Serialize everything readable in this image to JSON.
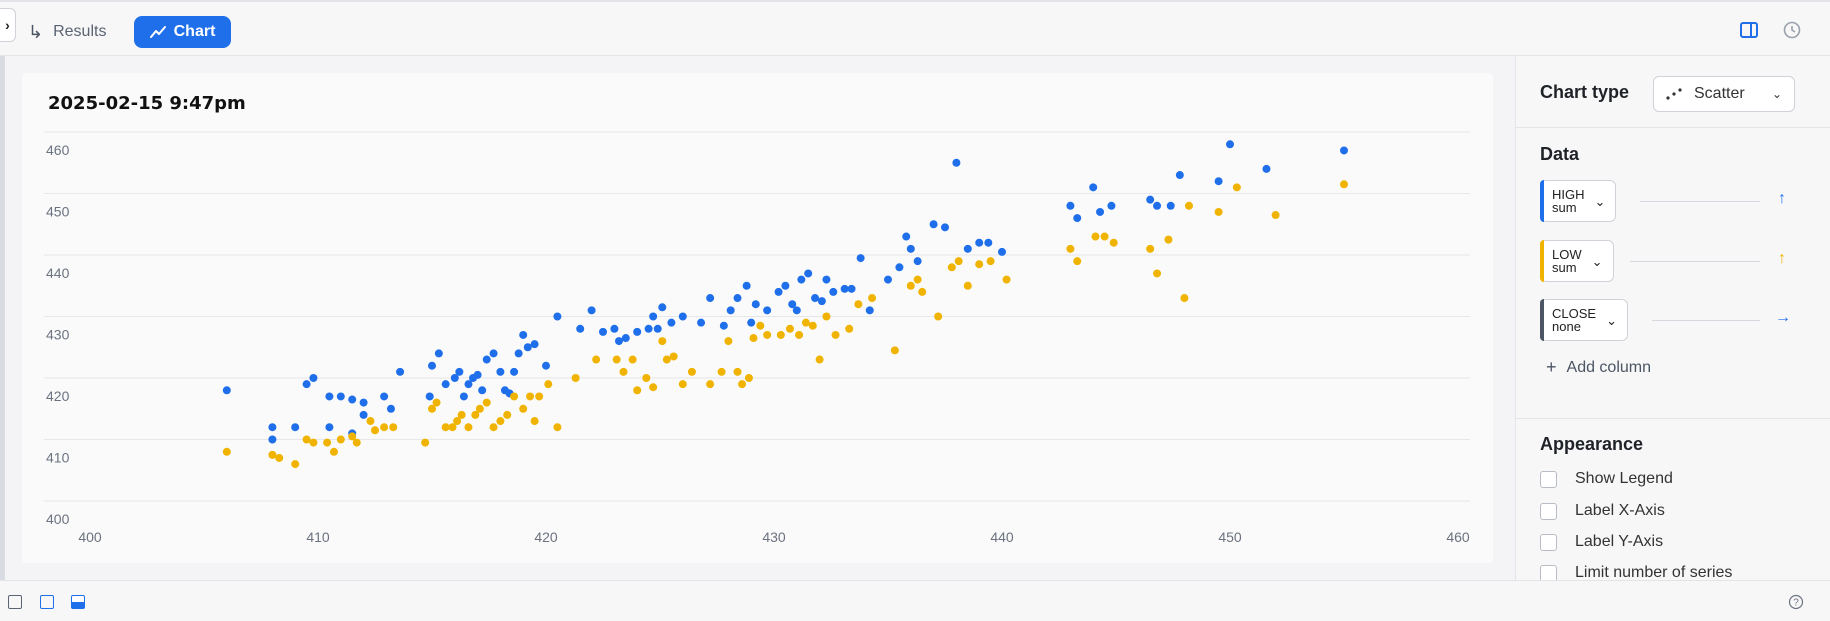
{
  "topbar": {
    "collapse_glyph": "›",
    "results_label": "Results",
    "chart_label": "Chart",
    "results_icon": "arrow-return-icon",
    "chart_icon": "line-trend-icon",
    "right_icons": [
      "panel-layout-icon",
      "clock-icon"
    ]
  },
  "chart_card": {
    "title": "2025-02-15 9:47pm"
  },
  "sidebar": {
    "chart_type_label": "Chart type",
    "chart_type_value": "Scatter",
    "data_title": "Data",
    "data_items": [
      {
        "name": "HIGH",
        "agg": "sum",
        "color": "#1f6feb",
        "axis_icon": "arrow-up-icon"
      },
      {
        "name": "LOW",
        "agg": "sum",
        "color": "#f0b400",
        "axis_icon": "arrow-up-icon"
      },
      {
        "name": "CLOSE",
        "agg": "none",
        "color": "#4b5563",
        "axis_icon": "arrow-right-icon"
      }
    ],
    "add_column": "Add column",
    "appearance_title": "Appearance",
    "appearance_options": [
      "Show Legend",
      "Label X-Axis",
      "Label Y-Axis",
      "Limit number of series"
    ]
  },
  "bottombar": {
    "icons": [
      "sidebar-left-icon",
      "panel-top-icon",
      "panel-bottom-icon",
      "help-icon"
    ]
  },
  "chart_data": {
    "type": "scatter",
    "title": "2025-02-15 9:47pm",
    "xlabel": "",
    "ylabel": "",
    "xlim": [
      400,
      460
    ],
    "ylim": [
      400,
      460
    ],
    "x_ticks": [
      400,
      410,
      420,
      430,
      440,
      450,
      460
    ],
    "y_ticks": [
      410,
      420,
      430,
      440,
      450,
      460
    ],
    "grid": true,
    "legend": false,
    "series": [
      {
        "color": "#1f6feb",
        "points": [
          [
            406,
            418
          ],
          [
            408,
            412
          ],
          [
            408,
            410
          ],
          [
            409,
            412
          ],
          [
            409.5,
            419
          ],
          [
            409.8,
            420
          ],
          [
            410.5,
            417
          ],
          [
            410.5,
            412
          ],
          [
            411,
            417
          ],
          [
            411.5,
            411
          ],
          [
            411.5,
            416.5
          ],
          [
            412,
            414
          ],
          [
            412,
            416
          ],
          [
            412.9,
            417
          ],
          [
            413.2,
            415
          ],
          [
            413.6,
            421
          ],
          [
            414.9,
            417
          ],
          [
            415,
            422
          ],
          [
            415.3,
            424
          ],
          [
            415.6,
            419
          ],
          [
            416,
            420
          ],
          [
            416.2,
            421
          ],
          [
            416.4,
            417
          ],
          [
            416.6,
            419
          ],
          [
            416.8,
            420
          ],
          [
            417,
            420.5
          ],
          [
            417.2,
            418
          ],
          [
            417.4,
            423
          ],
          [
            417.7,
            424
          ],
          [
            418,
            421
          ],
          [
            418.2,
            418
          ],
          [
            418.4,
            417.5
          ],
          [
            418.6,
            421
          ],
          [
            418.8,
            424
          ],
          [
            419,
            427
          ],
          [
            419.2,
            425
          ],
          [
            419.5,
            425.5
          ],
          [
            420,
            422
          ],
          [
            420.5,
            430
          ],
          [
            421.5,
            428
          ],
          [
            422,
            431
          ],
          [
            422.5,
            427.5
          ],
          [
            423,
            428
          ],
          [
            423.2,
            426
          ],
          [
            423.5,
            426.5
          ],
          [
            424,
            427.5
          ],
          [
            424.5,
            428
          ],
          [
            424.7,
            430
          ],
          [
            424.9,
            428
          ],
          [
            425.1,
            431.5
          ],
          [
            425.5,
            429
          ],
          [
            426,
            430
          ],
          [
            426.8,
            429
          ],
          [
            427.2,
            433
          ],
          [
            427.8,
            428.5
          ],
          [
            428.1,
            431
          ],
          [
            428.4,
            433
          ],
          [
            428.8,
            435
          ],
          [
            429,
            429
          ],
          [
            429.2,
            432
          ],
          [
            429.7,
            431
          ],
          [
            430.2,
            434
          ],
          [
            430.5,
            435
          ],
          [
            430.8,
            432
          ],
          [
            431,
            431
          ],
          [
            431.2,
            436
          ],
          [
            431.5,
            437
          ],
          [
            431.8,
            433
          ],
          [
            432.1,
            432.5
          ],
          [
            432.3,
            436
          ],
          [
            432.6,
            434
          ],
          [
            433.1,
            434.5
          ],
          [
            433.4,
            434.5
          ],
          [
            433.8,
            439.5
          ],
          [
            434.2,
            431
          ],
          [
            435,
            436
          ],
          [
            435.5,
            438
          ],
          [
            435.8,
            443
          ],
          [
            436,
            441
          ],
          [
            436.3,
            439
          ],
          [
            437,
            445
          ],
          [
            437.5,
            444.5
          ],
          [
            438,
            455
          ],
          [
            438.5,
            441
          ],
          [
            439,
            442
          ],
          [
            439.4,
            442
          ],
          [
            440,
            440.5
          ],
          [
            443,
            448
          ],
          [
            443.3,
            446
          ],
          [
            444,
            451
          ],
          [
            444.3,
            447
          ],
          [
            444.8,
            448
          ],
          [
            446.5,
            449
          ],
          [
            446.8,
            448
          ],
          [
            447.4,
            448
          ],
          [
            447.8,
            453
          ],
          [
            449.5,
            452
          ],
          [
            450,
            458
          ],
          [
            451.6,
            454
          ],
          [
            455,
            457
          ]
        ]
      },
      {
        "color": "#f0b400",
        "points": [
          [
            406,
            408
          ],
          [
            408,
            407.5
          ],
          [
            408.3,
            407
          ],
          [
            409,
            406
          ],
          [
            409.5,
            410
          ],
          [
            409.8,
            409.5
          ],
          [
            410.4,
            409.5
          ],
          [
            410.7,
            408
          ],
          [
            411,
            410
          ],
          [
            411.5,
            410.5
          ],
          [
            411.7,
            409.5
          ],
          [
            412.3,
            413
          ],
          [
            412.5,
            411.5
          ],
          [
            412.9,
            412
          ],
          [
            413.3,
            412
          ],
          [
            414.7,
            409.5
          ],
          [
            415,
            415
          ],
          [
            415.2,
            416
          ],
          [
            415.6,
            412
          ],
          [
            415.9,
            412
          ],
          [
            416.1,
            413
          ],
          [
            416.3,
            414
          ],
          [
            416.6,
            412
          ],
          [
            416.9,
            414
          ],
          [
            417.1,
            415
          ],
          [
            417.4,
            416
          ],
          [
            417.7,
            412
          ],
          [
            418,
            413
          ],
          [
            418.3,
            414
          ],
          [
            418.6,
            417
          ],
          [
            419,
            415
          ],
          [
            419.3,
            417
          ],
          [
            419.5,
            413
          ],
          [
            419.7,
            417
          ],
          [
            420.1,
            419
          ],
          [
            420.5,
            412
          ],
          [
            421.3,
            420
          ],
          [
            422.2,
            423
          ],
          [
            423.1,
            423
          ],
          [
            423.4,
            421
          ],
          [
            423.8,
            423
          ],
          [
            424,
            418
          ],
          [
            424.4,
            420
          ],
          [
            424.7,
            418.5
          ],
          [
            425.1,
            426
          ],
          [
            425.3,
            423
          ],
          [
            425.6,
            423.5
          ],
          [
            426,
            419
          ],
          [
            426.4,
            421
          ],
          [
            427.2,
            419
          ],
          [
            427.7,
            421
          ],
          [
            428,
            426
          ],
          [
            428.4,
            421
          ],
          [
            428.6,
            419
          ],
          [
            428.9,
            420
          ],
          [
            429.1,
            426.5
          ],
          [
            429.4,
            428.5
          ],
          [
            429.7,
            427
          ],
          [
            430.3,
            427
          ],
          [
            430.7,
            428
          ],
          [
            431.1,
            427
          ],
          [
            431.4,
            429
          ],
          [
            431.7,
            428.5
          ],
          [
            432,
            423
          ],
          [
            432.3,
            430
          ],
          [
            432.7,
            427
          ],
          [
            433.3,
            428
          ],
          [
            433.7,
            432
          ],
          [
            434.3,
            433
          ],
          [
            435.3,
            424.5
          ],
          [
            436,
            435
          ],
          [
            436.3,
            436
          ],
          [
            436.5,
            434
          ],
          [
            437.2,
            430
          ],
          [
            437.8,
            438
          ],
          [
            438.1,
            439
          ],
          [
            438.5,
            435
          ],
          [
            439,
            438.5
          ],
          [
            439.5,
            439
          ],
          [
            440.2,
            436
          ],
          [
            443,
            441
          ],
          [
            443.3,
            439
          ],
          [
            444.1,
            443
          ],
          [
            444.5,
            443
          ],
          [
            444.9,
            442
          ],
          [
            446.5,
            441
          ],
          [
            446.8,
            437
          ],
          [
            447.3,
            442.5
          ],
          [
            448,
            433
          ],
          [
            448.2,
            448
          ],
          [
            449.5,
            447
          ],
          [
            450.3,
            451
          ],
          [
            452,
            446.5
          ],
          [
            455,
            451.5
          ]
        ]
      }
    ]
  }
}
